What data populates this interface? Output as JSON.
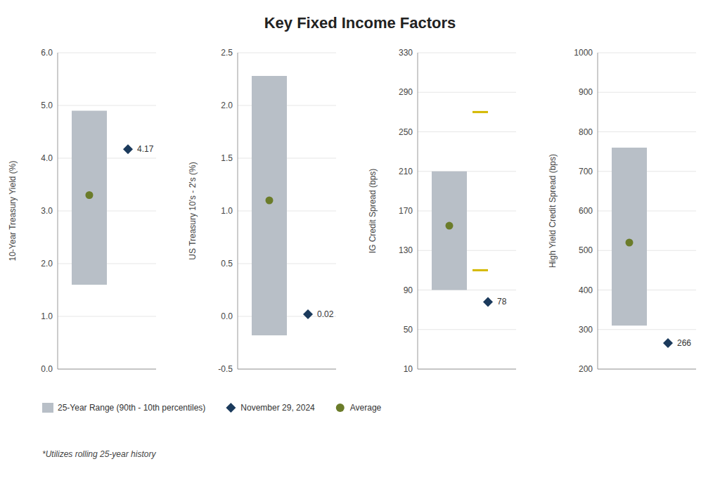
{
  "chart_data": {
    "type": "range",
    "title": "Key Fixed Income Factors",
    "footnote": "*Utilizes rolling 25-year history",
    "legend": "bottom",
    "panels": [
      {
        "ylabel": "10-Year Treasury Yield (%)",
        "ylim": [
          0.0,
          6.0
        ],
        "yticks": [
          {
            "value": 0.0,
            "label": "0.0"
          },
          {
            "value": 1.0,
            "label": "1.0"
          },
          {
            "value": 2.0,
            "label": "2.0"
          },
          {
            "value": 3.0,
            "label": "3.0"
          },
          {
            "value": 4.0,
            "label": "4.0"
          },
          {
            "value": 5.0,
            "label": "5.0"
          },
          {
            "value": 6.0,
            "label": "6.0"
          }
        ]
      },
      {
        "ylabel": "US Treasury 10's - 2's (%)",
        "ylim": [
          -0.5,
          2.5
        ],
        "yticks": [
          -0.5,
          {
            "value": 0.0,
            "label": "0.0"
          },
          0.5,
          {
            "value": 1.0,
            "label": "1.0"
          },
          1.5,
          {
            "value": 2.0,
            "label": "2.0"
          },
          2.5
        ]
      },
      {
        "ylabel": "IG Credit Spread (bps)",
        "ylim": [
          10,
          330
        ],
        "yticks": [
          10,
          50,
          90,
          130,
          170,
          210,
          250,
          290,
          330
        ]
      },
      {
        "ylabel": "High Yield Credit Spread (bps)",
        "ylim": [
          200,
          1000
        ],
        "yticks": [
          200,
          300,
          400,
          500,
          600,
          700,
          800,
          900,
          1000
        ]
      }
    ],
    "series": [
      {
        "name": "25-Year Range (90th - 10th percentiles)",
        "type": "range",
        "color": "#b8bfc7",
        "low": [
          1.6,
          -0.18,
          90,
          310
        ],
        "high": [
          4.9,
          2.28,
          210,
          760
        ]
      },
      {
        "name": "November 29, 2024",
        "marker": "diamond",
        "color": "#1b3a5c",
        "data_labels": true,
        "values": [
          4.17,
          0.02,
          78,
          266
        ]
      },
      {
        "name": "Average",
        "marker": "circle",
        "color": "#6b7c2a",
        "values": [
          3.3,
          1.1,
          155,
          520
        ]
      },
      {
        "marker": "dash",
        "color": "#d4b800",
        "values": [
          [],
          [],
          [
            110,
            270
          ],
          []
        ]
      }
    ]
  }
}
